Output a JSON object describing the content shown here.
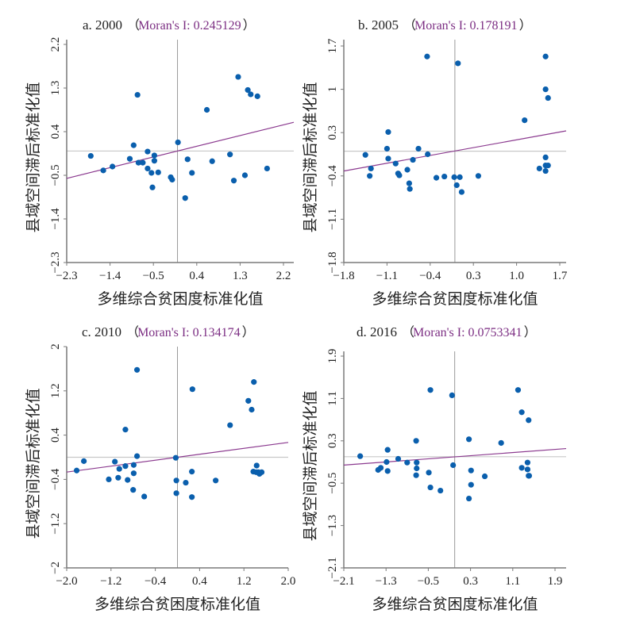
{
  "colors": {
    "point": "#0a5fad",
    "fit_line": "#8b3a8f",
    "moran_text": "#7b2d82",
    "axis": "#7a7a7a",
    "ref_line": "#c8c8c8",
    "text": "#222222"
  },
  "chart_data": [
    {
      "type": "scatter",
      "panel": "a",
      "title_prefix": "a. 2000",
      "open_paren": "（",
      "moran_label": "Moran's I: 0.245129",
      "close_paren": "）",
      "moran_i": 0.245129,
      "xlabel": "多维综合贫困度标准化值",
      "ylabel": "县域空间滞后标准化值",
      "xlim": [
        -2.3,
        2.42
      ],
      "ylim": [
        -2.3,
        2.3
      ],
      "xticks": [
        -2.3,
        -1.4,
        -0.5,
        0.4,
        1.3,
        2.2
      ],
      "xtick_labels": [
        "−2.3",
        "−1.4",
        "−0.5",
        "0.4",
        "1.3",
        "2.2"
      ],
      "yticks": [
        -2.3,
        -1.4,
        -0.5,
        0.4,
        1.3,
        2.2
      ],
      "ytick_labels": [
        "−2.3",
        "−1.4",
        "−0.5",
        "0.4",
        "1.3",
        "2.2"
      ],
      "points": [
        [
          -1.8,
          -0.1
        ],
        [
          -1.54,
          -0.4
        ],
        [
          -1.35,
          -0.32
        ],
        [
          -0.99,
          -0.16
        ],
        [
          -0.91,
          0.12
        ],
        [
          -0.83,
          1.16
        ],
        [
          -0.81,
          -0.24
        ],
        [
          -0.72,
          -0.24
        ],
        [
          -0.62,
          -0.01
        ],
        [
          -0.62,
          -0.36
        ],
        [
          -0.54,
          -0.45
        ],
        [
          -0.52,
          -0.75
        ],
        [
          -0.48,
          -0.09
        ],
        [
          -0.48,
          -0.2
        ],
        [
          -0.4,
          -0.44
        ],
        [
          -0.14,
          -0.54
        ],
        [
          -0.11,
          -0.59
        ],
        [
          0.01,
          0.18
        ],
        [
          0.16,
          -0.97
        ],
        [
          0.21,
          -0.17
        ],
        [
          0.3,
          -0.45
        ],
        [
          0.61,
          0.85
        ],
        [
          0.72,
          -0.21
        ],
        [
          1.09,
          -0.07
        ],
        [
          1.17,
          -0.61
        ],
        [
          1.26,
          1.53
        ],
        [
          1.4,
          -0.5
        ],
        [
          1.46,
          1.26
        ],
        [
          1.52,
          1.17
        ],
        [
          1.66,
          1.13
        ],
        [
          1.86,
          -0.36
        ]
      ]
    },
    {
      "type": "scatter",
      "panel": "b",
      "title_prefix": "b. 2005",
      "open_paren": "（",
      "moran_label": "Moran's I: 0.178191",
      "close_paren": "）",
      "moran_i": 0.178191,
      "xlabel": "多维综合贫困度标准化值",
      "ylabel": "县域空间滞后标准化值",
      "xlim": [
        -1.8,
        1.84
      ],
      "ylim": [
        -1.8,
        1.8
      ],
      "xticks": [
        -1.8,
        -1.1,
        -0.4,
        0.3,
        1.0,
        1.7
      ],
      "xtick_labels": [
        "−1.8",
        "−1.1",
        "−0.4",
        "0.3",
        "1.0",
        "1.7"
      ],
      "yticks": [
        -1.8,
        -1.1,
        -0.4,
        0.3,
        1,
        1.7
      ],
      "ytick_labels": [
        "−1.8",
        "−1.1",
        "−0.4",
        "0.3",
        "1",
        "1.7"
      ],
      "points": [
        [
          -1.45,
          -0.06
        ],
        [
          -1.36,
          -0.28
        ],
        [
          -1.38,
          -0.4
        ],
        [
          -1.1,
          0.04
        ],
        [
          -1.08,
          0.31
        ],
        [
          -1.08,
          -0.12
        ],
        [
          -0.96,
          -0.2
        ],
        [
          -0.92,
          -0.36
        ],
        [
          -0.9,
          -0.39
        ],
        [
          -0.74,
          -0.52
        ],
        [
          -0.73,
          -0.61
        ],
        [
          -0.77,
          -0.3
        ],
        [
          -0.68,
          -0.14
        ],
        [
          -0.59,
          0.04
        ],
        [
          -0.45,
          1.53
        ],
        [
          -0.44,
          -0.05
        ],
        [
          -0.3,
          -0.43
        ],
        [
          -0.17,
          -0.41
        ],
        [
          -0.01,
          -0.42
        ],
        [
          0.05,
          1.42
        ],
        [
          0.08,
          -0.42
        ],
        [
          0.03,
          -0.55
        ],
        [
          0.11,
          -0.66
        ],
        [
          0.38,
          -0.4
        ],
        [
          1.13,
          0.5
        ],
        [
          1.37,
          -0.28
        ],
        [
          1.47,
          1.53
        ],
        [
          1.47,
          1.0
        ],
        [
          1.51,
          0.86
        ],
        [
          1.47,
          -0.1
        ],
        [
          1.47,
          -0.23
        ],
        [
          1.51,
          -0.23
        ],
        [
          1.47,
          -0.32
        ]
      ]
    },
    {
      "type": "scatter",
      "panel": "c",
      "title_prefix": "c. 2010",
      "open_paren": "（",
      "moran_label": "Moran's I: 0.134174",
      "close_paren": "）",
      "moran_i": 0.134174,
      "xlabel": "多维综合贫困度标准化值",
      "ylabel": "县域空间滞后标准化值",
      "xlim": [
        -2.0,
        2.0
      ],
      "ylim": [
        -2.0,
        2.0
      ],
      "xticks": [
        -2.0,
        -1.2,
        -0.4,
        0.4,
        1.2,
        2.0
      ],
      "xtick_labels": [
        "−2.0",
        "−1.2",
        "−0.4",
        "0.4",
        "1.2",
        "2.0"
      ],
      "yticks": [
        -2,
        -1.2,
        -0.4,
        0.4,
        1.2,
        2
      ],
      "ytick_labels": [
        "−2",
        "−1.2",
        "−0.4",
        "0.4",
        "1.2",
        "2"
      ],
      "points": [
        [
          -1.82,
          -0.24
        ],
        [
          -1.69,
          -0.07
        ],
        [
          -1.24,
          -0.4
        ],
        [
          -1.13,
          -0.08
        ],
        [
          -1.05,
          -0.21
        ],
        [
          -1.07,
          -0.37
        ],
        [
          -0.94,
          -0.16
        ],
        [
          -0.9,
          -0.41
        ],
        [
          -0.94,
          0.5
        ],
        [
          -0.79,
          -0.29
        ],
        [
          -0.79,
          -0.14
        ],
        [
          -0.8,
          -0.59
        ],
        [
          -0.73,
          1.58
        ],
        [
          -0.73,
          0.02
        ],
        [
          -0.6,
          -0.71
        ],
        [
          -0.03,
          -0.01
        ],
        [
          -0.02,
          -0.42
        ],
        [
          -0.02,
          -0.65
        ],
        [
          0.15,
          -0.46
        ],
        [
          0.26,
          -0.26
        ],
        [
          0.26,
          -0.72
        ],
        [
          0.27,
          1.23
        ],
        [
          0.69,
          -0.42
        ],
        [
          0.95,
          0.58
        ],
        [
          1.28,
          1.02
        ],
        [
          1.34,
          0.86
        ],
        [
          1.38,
          1.36
        ],
        [
          1.43,
          -0.15
        ],
        [
          1.42,
          -0.27
        ],
        [
          1.37,
          -0.26
        ],
        [
          1.46,
          -0.27
        ],
        [
          1.48,
          -0.3
        ],
        [
          1.52,
          -0.27
        ]
      ]
    },
    {
      "type": "scatter",
      "panel": "d",
      "title_prefix": "d. 2016",
      "open_paren": "（",
      "moran_label": "Moran's I: 0.0753341",
      "close_paren": "）",
      "moran_i": 0.0753341,
      "xlabel": "多维综合贫困度标准化值",
      "ylabel": "县域空间滞后标准化值",
      "xlim": [
        -2.1,
        2.04
      ],
      "ylim": [
        -2.1,
        2.1
      ],
      "xticks": [
        -2.1,
        -1.3,
        -0.5,
        0.3,
        1.1,
        1.9
      ],
      "xtick_labels": [
        "−2.1",
        "−1.3",
        "−0.5",
        "0.3",
        "1.1",
        "1.9"
      ],
      "yticks": [
        -2.1,
        -1.3,
        -0.5,
        0.3,
        1.1,
        1.9
      ],
      "ytick_labels": [
        "−2.1",
        "−1.3",
        "−0.5",
        "0.3",
        "1.1",
        "1.9"
      ],
      "points": [
        [
          -1.79,
          0.01
        ],
        [
          -1.45,
          -0.25
        ],
        [
          -1.4,
          -0.21
        ],
        [
          -1.29,
          -0.1
        ],
        [
          -1.27,
          -0.27
        ],
        [
          -1.27,
          0.13
        ],
        [
          -1.07,
          -0.04
        ],
        [
          -0.9,
          -0.11
        ],
        [
          -0.72,
          -0.11
        ],
        [
          -0.72,
          -0.22
        ],
        [
          -0.73,
          -0.35
        ],
        [
          -0.73,
          0.3
        ],
        [
          -0.49,
          -0.3
        ],
        [
          -0.46,
          -0.58
        ],
        [
          -0.46,
          1.26
        ],
        [
          -0.27,
          -0.64
        ],
        [
          -0.03,
          -0.16
        ],
        [
          -0.05,
          1.16
        ],
        [
          0.27,
          0.33
        ],
        [
          0.27,
          -0.79
        ],
        [
          0.31,
          -0.53
        ],
        [
          0.31,
          -0.26
        ],
        [
          0.57,
          -0.37
        ],
        [
          0.88,
          0.26
        ],
        [
          1.2,
          1.26
        ],
        [
          1.27,
          0.84
        ],
        [
          1.27,
          -0.21
        ],
        [
          1.4,
          0.69
        ],
        [
          1.38,
          -0.11
        ],
        [
          1.38,
          -0.24
        ],
        [
          1.4,
          -0.36
        ],
        [
          1.41,
          -0.36
        ]
      ]
    }
  ]
}
